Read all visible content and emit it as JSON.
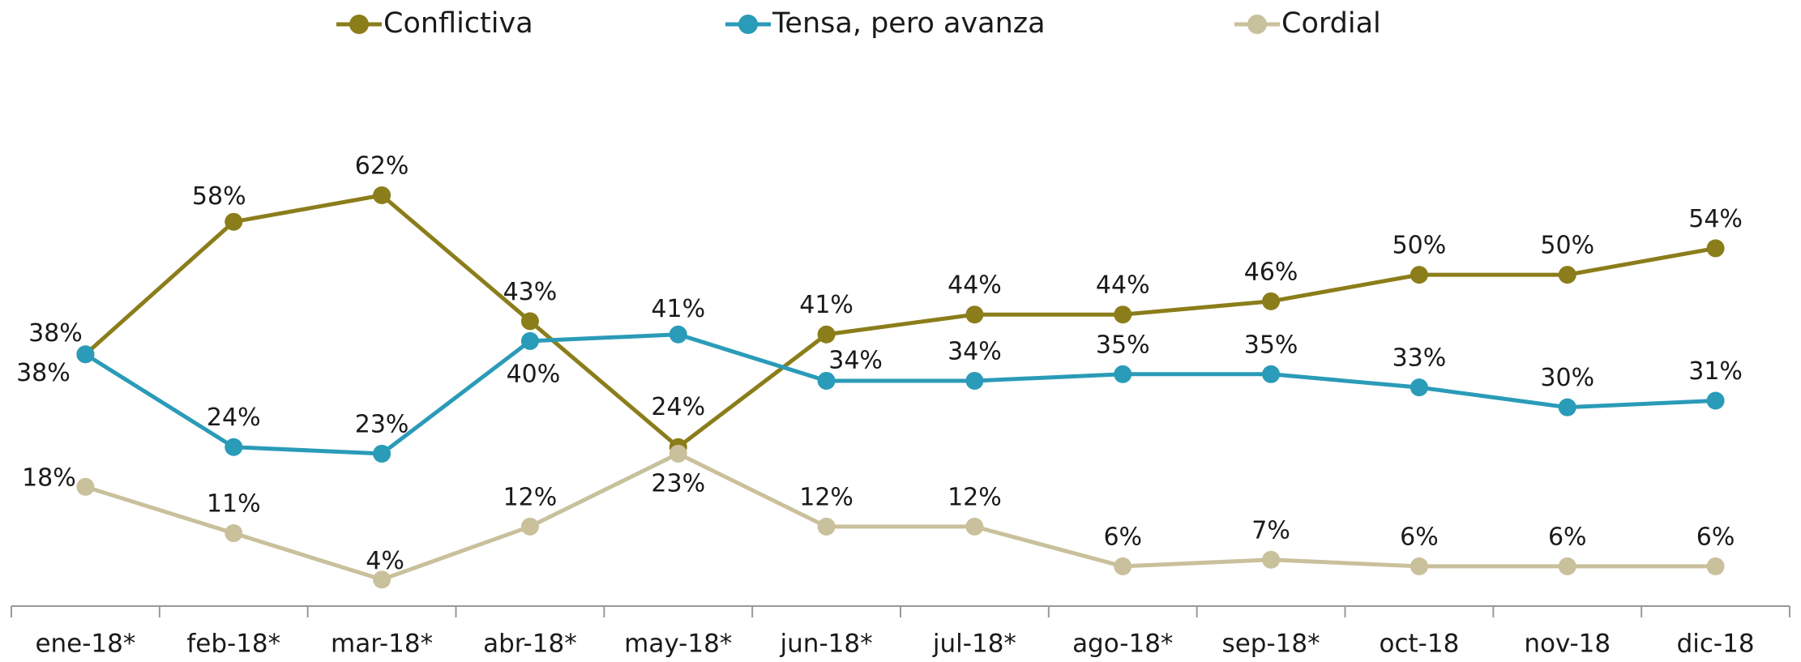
{
  "chart_data": {
    "type": "line",
    "categories": [
      "ene-18*",
      "feb-18*",
      "mar-18*",
      "abr-18*",
      "may-18*",
      "jun-18*",
      "jul-18*",
      "ago-18*",
      "sep-18*",
      "oct-18",
      "nov-18",
      "dic-18"
    ],
    "series": [
      {
        "name": "Conflictiva",
        "color": "#8b7d1a",
        "values": [
          38,
          58,
          62,
          43,
          24,
          41,
          44,
          44,
          46,
          50,
          50,
          54
        ],
        "value_labels": [
          "38%",
          "58%",
          "62%",
          "43%",
          "24%",
          "41%",
          "44%",
          "44%",
          "46%",
          "50%",
          "50%",
          "54%"
        ]
      },
      {
        "name": "Tensa, pero avanza",
        "color": "#2a9bb8",
        "values": [
          38,
          24,
          23,
          40,
          41,
          34,
          34,
          35,
          35,
          33,
          30,
          31
        ],
        "value_labels": [
          "38%",
          "24%",
          "23%",
          "40%",
          "41%",
          "34%",
          "34%",
          "35%",
          "35%",
          "33%",
          "30%",
          "31%"
        ]
      },
      {
        "name": "Cordial",
        "color": "#c9c09c",
        "values": [
          18,
          11,
          4,
          12,
          23,
          12,
          12,
          6,
          7,
          6,
          6,
          6
        ],
        "value_labels": [
          "18%",
          "11%",
          "4%",
          "12%",
          "23%",
          "12%",
          "12%",
          "6%",
          "7%",
          "6%",
          "6%",
          "6%"
        ]
      }
    ],
    "legend": "top"
  }
}
